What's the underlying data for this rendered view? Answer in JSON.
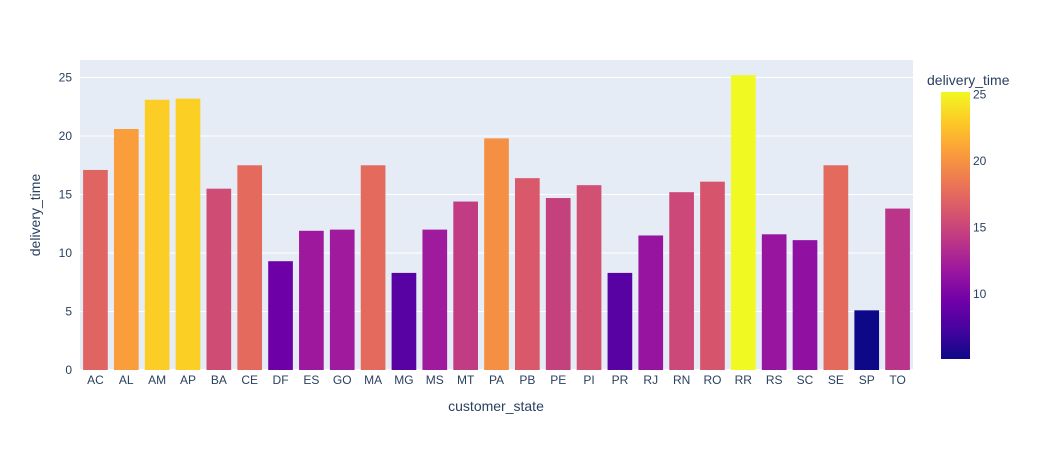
{
  "chart_data": {
    "type": "bar",
    "xlabel": "customer_state",
    "ylabel": "delivery_time",
    "categories": [
      "AC",
      "AL",
      "AM",
      "AP",
      "BA",
      "CE",
      "DF",
      "ES",
      "GO",
      "MA",
      "MG",
      "MS",
      "MT",
      "PA",
      "PB",
      "PE",
      "PI",
      "PR",
      "RJ",
      "RN",
      "RO",
      "RR",
      "RS",
      "SC",
      "SE",
      "SP",
      "TO"
    ],
    "values": [
      17.1,
      20.6,
      23.1,
      23.2,
      15.5,
      17.5,
      9.3,
      11.9,
      12.0,
      17.5,
      8.3,
      12.0,
      14.4,
      19.8,
      16.4,
      14.7,
      15.8,
      8.3,
      11.5,
      15.2,
      16.1,
      25.2,
      11.6,
      11.1,
      17.5,
      5.1,
      13.8
    ],
    "ylim": [
      0,
      26.5
    ],
    "yticks": [
      0,
      5,
      10,
      15,
      20,
      25
    ],
    "grid": true,
    "colorbar": {
      "title": "delivery_time",
      "min": 5.1,
      "max": 25.2,
      "ticks": [
        10,
        15,
        20,
        25
      ],
      "colorscale": [
        "#0d0887",
        "#46039f",
        "#7201a8",
        "#9c179e",
        "#bd3786",
        "#d8576b",
        "#ed7953",
        "#fb9f3a",
        "#fdca26",
        "#f0f921"
      ]
    },
    "plot_background": "#e5ecf6",
    "text_color": "#2a3f5f"
  }
}
